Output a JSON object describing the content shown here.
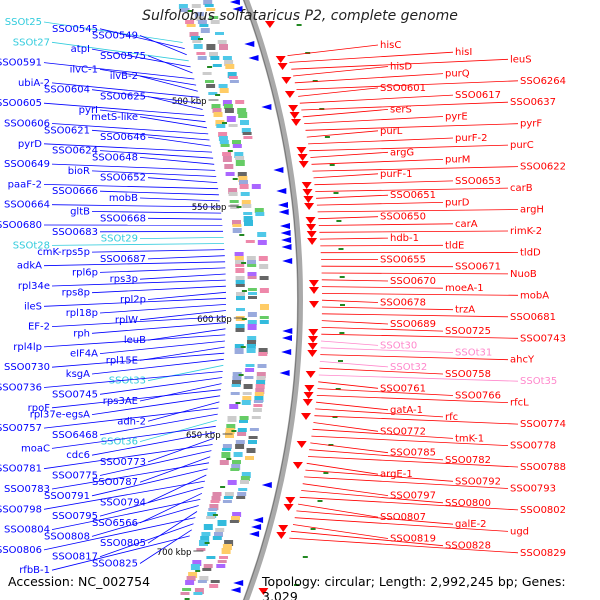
{
  "title": "Sulfolobus solfataricus P2, complete genome",
  "accession": "Accession: NC_002754",
  "topology": "Topology: circular; Length: 2,992,245 bp; Genes: 3,029",
  "scale_labels": [
    "500 kbp",
    "550 kbp",
    "600 kbp",
    "650 kbp",
    "700 kbp"
  ],
  "colors": {
    "forward": "#ff0000",
    "reverse": "#0000ff",
    "rna_cyan": "#33ccdd",
    "rna_pink": "#ff88cc",
    "backbone": "#999999",
    "tick": "#228822"
  },
  "left_labels": [
    {
      "text": "SSOt25",
      "color": "cyan"
    },
    {
      "text": "SSO0545",
      "color": "blue"
    },
    {
      "text": "SSO0549",
      "color": "blue"
    },
    {
      "text": "SSOt27",
      "color": "cyan"
    },
    {
      "text": "atpI",
      "color": "blue"
    },
    {
      "text": "SSO0575",
      "color": "blue"
    },
    {
      "text": "SSO0591",
      "color": "blue"
    },
    {
      "text": "ilvC-1",
      "color": "blue"
    },
    {
      "text": "ilvB-2",
      "color": "blue"
    },
    {
      "text": "ubiA-2",
      "color": "blue"
    },
    {
      "text": "SSO0604",
      "color": "blue"
    },
    {
      "text": "SSO0625",
      "color": "blue"
    },
    {
      "text": "SSO0605",
      "color": "blue"
    },
    {
      "text": "pyrI",
      "color": "blue"
    },
    {
      "text": "metS-like",
      "color": "blue"
    },
    {
      "text": "SSO0606",
      "color": "blue"
    },
    {
      "text": "SSO0621",
      "color": "blue"
    },
    {
      "text": "SSO0646",
      "color": "blue"
    },
    {
      "text": "pyrD",
      "color": "blue"
    },
    {
      "text": "SSO0624",
      "color": "blue"
    },
    {
      "text": "SSO0648",
      "color": "blue"
    },
    {
      "text": "SSO0649",
      "color": "blue"
    },
    {
      "text": "bioR",
      "color": "blue"
    },
    {
      "text": "SSO0652",
      "color": "blue"
    },
    {
      "text": "paaF-2",
      "color": "blue"
    },
    {
      "text": "SSO0666",
      "color": "blue"
    },
    {
      "text": "mobB",
      "color": "blue"
    },
    {
      "text": "SSO0664",
      "color": "blue"
    },
    {
      "text": "gltB",
      "color": "blue"
    },
    {
      "text": "SSO0668",
      "color": "blue"
    },
    {
      "text": "SSO0680",
      "color": "blue"
    },
    {
      "text": "SSO0683",
      "color": "blue"
    },
    {
      "text": "SSOt29",
      "color": "cyan"
    },
    {
      "text": "SSOt28",
      "color": "cyan"
    },
    {
      "text": "cmK-rps5p",
      "color": "blue"
    },
    {
      "text": "SSO0687",
      "color": "blue"
    },
    {
      "text": "adkA",
      "color": "blue"
    },
    {
      "text": "rpl6p",
      "color": "blue"
    },
    {
      "text": "rps3p",
      "color": "blue"
    },
    {
      "text": "rpl34e",
      "color": "blue"
    },
    {
      "text": "rps8p",
      "color": "blue"
    },
    {
      "text": "rpl2p",
      "color": "blue"
    },
    {
      "text": "ileS",
      "color": "blue"
    },
    {
      "text": "rpl18p",
      "color": "blue"
    },
    {
      "text": "rplW",
      "color": "blue"
    },
    {
      "text": "EF-2",
      "color": "blue"
    },
    {
      "text": "rph",
      "color": "blue"
    },
    {
      "text": "leuB",
      "color": "blue"
    },
    {
      "text": "rpl4lp",
      "color": "blue"
    },
    {
      "text": "eIF4A",
      "color": "blue"
    },
    {
      "text": "rpl15E",
      "color": "blue"
    },
    {
      "text": "SSO0730",
      "color": "blue"
    },
    {
      "text": "ksgA",
      "color": "blue"
    },
    {
      "text": "SSOt33",
      "color": "cyan"
    },
    {
      "text": "SSO0736",
      "color": "blue"
    },
    {
      "text": "SSO0745",
      "color": "blue"
    },
    {
      "text": "rps3AE",
      "color": "blue"
    },
    {
      "text": "rpoF",
      "color": "blue"
    },
    {
      "text": "rpl37e-egsA",
      "color": "blue"
    },
    {
      "text": "adh-2",
      "color": "blue"
    },
    {
      "text": "SSO0757",
      "color": "blue"
    },
    {
      "text": "SSO6468",
      "color": "blue"
    },
    {
      "text": "SSOt36",
      "color": "cyan"
    },
    {
      "text": "moaC",
      "color": "blue"
    },
    {
      "text": "cdc6",
      "color": "blue"
    },
    {
      "text": "SSO0773",
      "color": "blue"
    },
    {
      "text": "SSO0781",
      "color": "blue"
    },
    {
      "text": "SSO0775",
      "color": "blue"
    },
    {
      "text": "SSO0787",
      "color": "blue"
    },
    {
      "text": "SSO0783",
      "color": "blue"
    },
    {
      "text": "SSO0791",
      "color": "blue"
    },
    {
      "text": "SSO0794",
      "color": "blue"
    },
    {
      "text": "SSO0798",
      "color": "blue"
    },
    {
      "text": "SSO0795",
      "color": "blue"
    },
    {
      "text": "SSO6566",
      "color": "blue"
    },
    {
      "text": "SSO0804",
      "color": "blue"
    },
    {
      "text": "SSO0808",
      "color": "blue"
    },
    {
      "text": "SSO0805",
      "color": "blue"
    },
    {
      "text": "SSO0806",
      "color": "blue"
    },
    {
      "text": "SSO0817",
      "color": "blue"
    },
    {
      "text": "SSO0825",
      "color": "blue"
    },
    {
      "text": "rfbB-1",
      "color": "blue"
    }
  ],
  "right_labels": [
    {
      "text": "hisC",
      "color": "red"
    },
    {
      "text": "hisI",
      "color": "red"
    },
    {
      "text": "leuS",
      "color": "red"
    },
    {
      "text": "hisD",
      "color": "red"
    },
    {
      "text": "purQ",
      "color": "red"
    },
    {
      "text": "SSO6264",
      "color": "red"
    },
    {
      "text": "SSO0601",
      "color": "red"
    },
    {
      "text": "SSO0617",
      "color": "red"
    },
    {
      "text": "SSO0637",
      "color": "red"
    },
    {
      "text": "serS",
      "color": "red"
    },
    {
      "text": "pyrE",
      "color": "red"
    },
    {
      "text": "pyrF",
      "color": "red"
    },
    {
      "text": "purL",
      "color": "red"
    },
    {
      "text": "purF-2",
      "color": "red"
    },
    {
      "text": "purC",
      "color": "red"
    },
    {
      "text": "argG",
      "color": "red"
    },
    {
      "text": "purM",
      "color": "red"
    },
    {
      "text": "SSO0622",
      "color": "red"
    },
    {
      "text": "purF-1",
      "color": "red"
    },
    {
      "text": "SSO0653",
      "color": "red"
    },
    {
      "text": "carB",
      "color": "red"
    },
    {
      "text": "SSO0651",
      "color": "red"
    },
    {
      "text": "purD",
      "color": "red"
    },
    {
      "text": "argH",
      "color": "red"
    },
    {
      "text": "SSO0650",
      "color": "red"
    },
    {
      "text": "carA",
      "color": "red"
    },
    {
      "text": "rimK-2",
      "color": "red"
    },
    {
      "text": "hdb-1",
      "color": "red"
    },
    {
      "text": "tldE",
      "color": "red"
    },
    {
      "text": "tldD",
      "color": "red"
    },
    {
      "text": "SSO0655",
      "color": "red"
    },
    {
      "text": "SSO0671",
      "color": "red"
    },
    {
      "text": "NuoB",
      "color": "red"
    },
    {
      "text": "SSO0670",
      "color": "red"
    },
    {
      "text": "moeA-1",
      "color": "red"
    },
    {
      "text": "mobA",
      "color": "red"
    },
    {
      "text": "SSO0678",
      "color": "red"
    },
    {
      "text": "trzA",
      "color": "red"
    },
    {
      "text": "SSO0681",
      "color": "red"
    },
    {
      "text": "SSO0689",
      "color": "red"
    },
    {
      "text": "SSO0725",
      "color": "red"
    },
    {
      "text": "SSO0743",
      "color": "red"
    },
    {
      "text": "SSOt30",
      "color": "pink"
    },
    {
      "text": "SSOt31",
      "color": "pink"
    },
    {
      "text": "ahcY",
      "color": "red"
    },
    {
      "text": "SSOt32",
      "color": "pink"
    },
    {
      "text": "SSO0758",
      "color": "red"
    },
    {
      "text": "SSOt35",
      "color": "pink"
    },
    {
      "text": "SSO0761",
      "color": "red"
    },
    {
      "text": "SSO0766",
      "color": "red"
    },
    {
      "text": "rfcL",
      "color": "red"
    },
    {
      "text": "gatA-1",
      "color": "red"
    },
    {
      "text": "rfc",
      "color": "red"
    },
    {
      "text": "SSO0774",
      "color": "red"
    },
    {
      "text": "SSO0772",
      "color": "red"
    },
    {
      "text": "tmK-1",
      "color": "red"
    },
    {
      "text": "SSO0778",
      "color": "red"
    },
    {
      "text": "SSO0785",
      "color": "red"
    },
    {
      "text": "SSO0782",
      "color": "red"
    },
    {
      "text": "SSO0788",
      "color": "red"
    },
    {
      "text": "argE-1",
      "color": "red"
    },
    {
      "text": "SSO0792",
      "color": "red"
    },
    {
      "text": "SSO0793",
      "color": "red"
    },
    {
      "text": "SSO0797",
      "color": "red"
    },
    {
      "text": "SSO0800",
      "color": "red"
    },
    {
      "text": "SSO0802",
      "color": "red"
    },
    {
      "text": "SSO0807",
      "color": "red"
    },
    {
      "text": "galE-2",
      "color": "red"
    },
    {
      "text": "ugd",
      "color": "red"
    },
    {
      "text": "SSO0819",
      "color": "red"
    },
    {
      "text": "SSO0828",
      "color": "red"
    },
    {
      "text": "SSO0829",
      "color": "red"
    }
  ]
}
